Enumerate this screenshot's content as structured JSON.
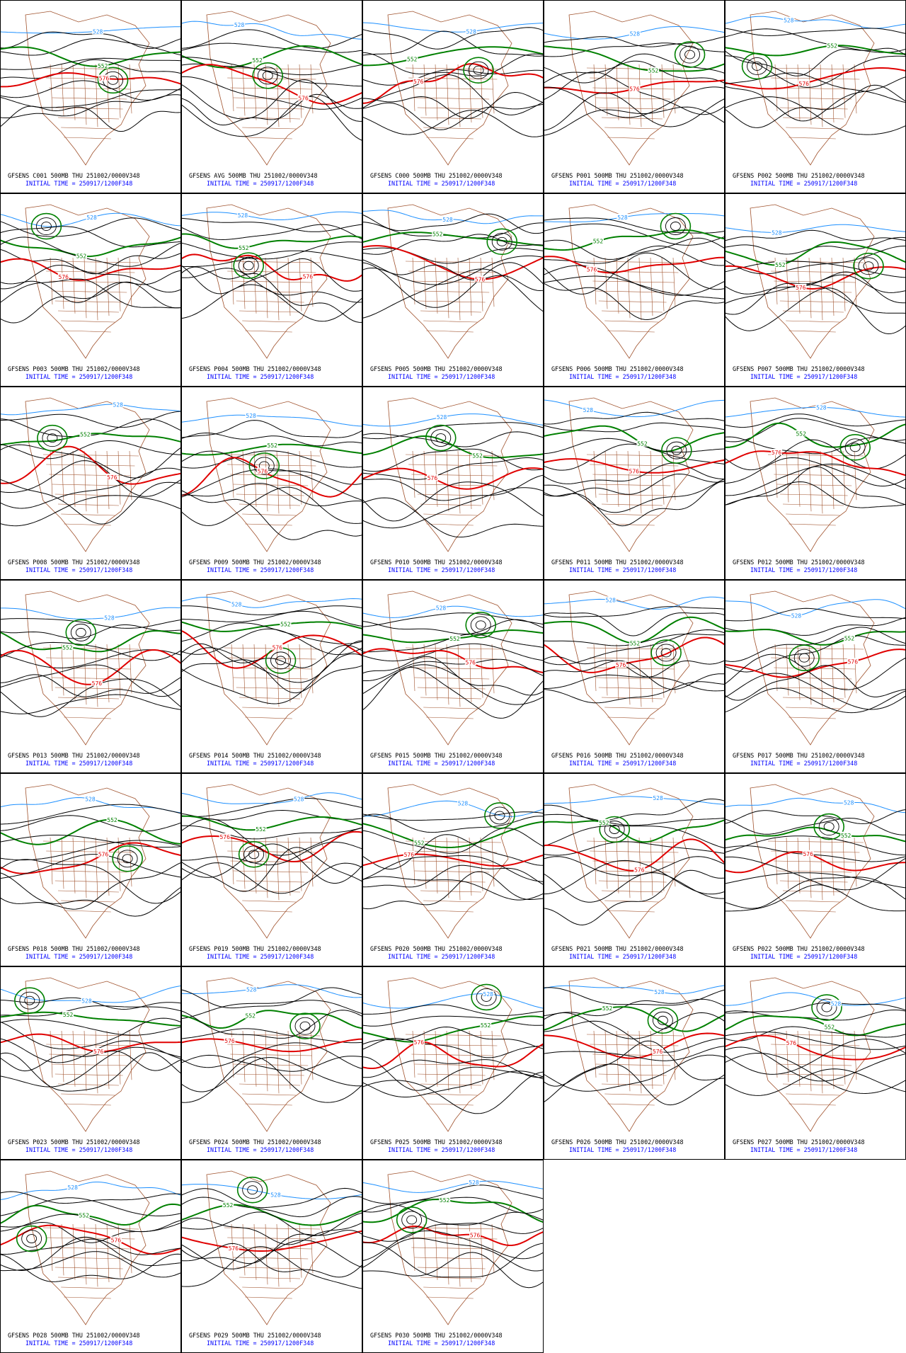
{
  "panels": [
    {
      "header": "GFSENS C001 500MB THU 251002/0000V348",
      "init": "INITIAL TIME = 250917/1200F348"
    },
    {
      "header": "GFSENS AVG 500MB THU 251002/0000V348",
      "init": "INITIAL TIME = 250917/1200F348"
    },
    {
      "header": "GFSENS C000 500MB THU 251002/0000V348",
      "init": "INITIAL TIME = 250917/1200F348"
    },
    {
      "header": "GFSENS P001 500MB THU 251002/0000V348",
      "init": "INITIAL TIME = 250917/1200F348"
    },
    {
      "header": "GFSENS P002 500MB THU 251002/0000V348",
      "init": "INITIAL TIME = 250917/1200F348"
    },
    {
      "header": "GFSENS P003 500MB THU 251002/0000V348",
      "init": "INITIAL TIME = 250917/1200F348"
    },
    {
      "header": "GFSENS P004 500MB THU 251002/0000V348",
      "init": "INITIAL TIME = 250917/1200F348"
    },
    {
      "header": "GFSENS P005 500MB THU 251002/0000V348",
      "init": "INITIAL TIME = 250917/1200F348"
    },
    {
      "header": "GFSENS P006 500MB THU 251002/0000V348",
      "init": "INITIAL TIME = 250917/1200F348"
    },
    {
      "header": "GFSENS P007 500MB THU 251002/0000V348",
      "init": "INITIAL TIME = 250917/1200F348"
    },
    {
      "header": "GFSENS P008 500MB THU 251002/0000V348",
      "init": "INITIAL TIME = 250917/1200F348"
    },
    {
      "header": "GFSENS P009 500MB THU 251002/0000V348",
      "init": "INITIAL TIME = 250917/1200F348"
    },
    {
      "header": "GFSENS P010 500MB THU 251002/0000V348",
      "init": "INITIAL TIME = 250917/1200F348"
    },
    {
      "header": "GFSENS P011 500MB THU 251002/0000V348",
      "init": "INITIAL TIME = 250917/1200F348"
    },
    {
      "header": "GFSENS P012 500MB THU 251002/0000V348",
      "init": "INITIAL TIME = 250917/1200F348"
    },
    {
      "header": "GFSENS P013 500MB THU 251002/0000V348",
      "init": "INITIAL TIME = 250917/1200F348"
    },
    {
      "header": "GFSENS P014 500MB THU 251002/0000V348",
      "init": "INITIAL TIME = 250917/1200F348"
    },
    {
      "header": "GFSENS P015 500MB THU 251002/0000V348",
      "init": "INITIAL TIME = 250917/1200F348"
    },
    {
      "header": "GFSENS P016 500MB THU 251002/0000V348",
      "init": "INITIAL TIME = 250917/1200F348"
    },
    {
      "header": "GFSENS P017 500MB THU 251002/0000V348",
      "init": "INITIAL TIME = 250917/1200F348"
    },
    {
      "header": "GFSENS P018 500MB THU 251002/0000V348",
      "init": "INITIAL TIME = 250917/1200F348"
    },
    {
      "header": "GFSENS P019 500MB THU 251002/0000V348",
      "init": "INITIAL TIME = 250917/1200F348"
    },
    {
      "header": "GFSENS P020 500MB THU 251002/0000V348",
      "init": "INITIAL TIME = 250917/1200F348"
    },
    {
      "header": "GFSENS P021 500MB THU 251002/0000V348",
      "init": "INITIAL TIME = 250917/1200F348"
    },
    {
      "header": "GFSENS P022 500MB THU 251002/0000V348",
      "init": "INITIAL TIME = 250917/1200F348"
    },
    {
      "header": "GFSENS P023 500MB THU 251002/0000V348",
      "init": "INITIAL TIME = 250917/1200F348"
    },
    {
      "header": "GFSENS P024 500MB THU 251002/0000V348",
      "init": "INITIAL TIME = 250917/1200F348"
    },
    {
      "header": "GFSENS P025 500MB THU 251002/0000V348",
      "init": "INITIAL TIME = 250917/1200F348"
    },
    {
      "header": "GFSENS P026 500MB THU 251002/0000V348",
      "init": "INITIAL TIME = 250917/1200F348"
    },
    {
      "header": "GFSENS P027 500MB THU 251002/0000V348",
      "init": "INITIAL TIME = 250917/1200F348"
    },
    {
      "header": "GFSENS P028 500MB THU 251002/0000V348",
      "init": "INITIAL TIME = 250917/1200F348"
    },
    {
      "header": "GFSENS P029 500MB THU 251002/0000V348",
      "init": "INITIAL TIME = 250917/1200F348"
    },
    {
      "header": "GFSENS P030 500MB THU 251002/0000V348",
      "init": "INITIAL TIME = 250917/1200F348"
    }
  ],
  "contour_labels": [
    "528",
    "552",
    "576"
  ]
}
